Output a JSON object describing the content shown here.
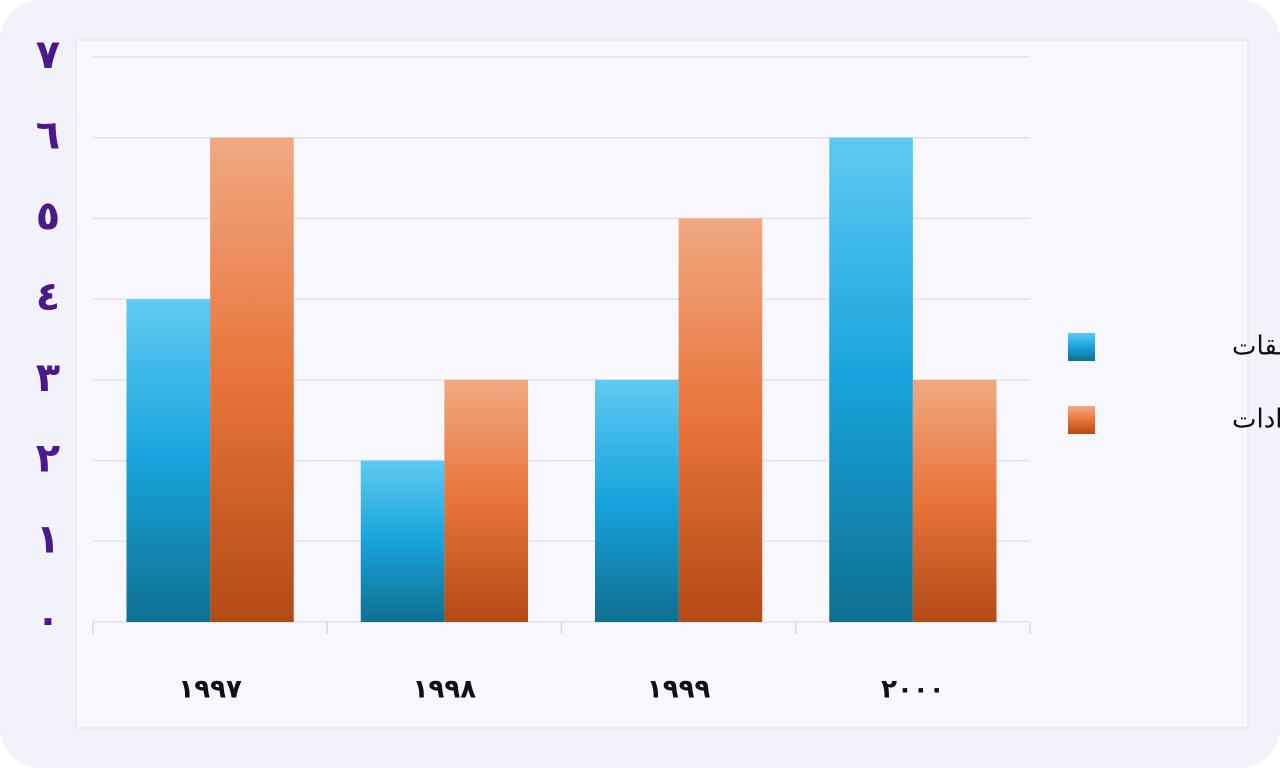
{
  "chart_data": {
    "type": "bar",
    "categories": [
      "١٩٩٧",
      "١٩٩٨",
      "١٩٩٩",
      "٢٠٠٠"
    ],
    "series": [
      {
        "name": "النفقات",
        "color": "#17a3dc",
        "values": [
          4,
          2,
          3,
          6
        ]
      },
      {
        "name": "الإيرادات",
        "color": "#e8743a",
        "values": [
          6,
          3,
          5,
          3
        ]
      }
    ],
    "ylim": [
      0,
      7
    ],
    "yticks": [
      {
        "value": 0,
        "label": "٠"
      },
      {
        "value": 1,
        "label": "١"
      },
      {
        "value": 2,
        "label": "٢"
      },
      {
        "value": 3,
        "label": "٣"
      },
      {
        "value": 4,
        "label": "٤"
      },
      {
        "value": 5,
        "label": "٥"
      },
      {
        "value": 6,
        "label": "٦"
      },
      {
        "value": 7,
        "label": "٧"
      }
    ],
    "grid": true,
    "legend": "right"
  }
}
